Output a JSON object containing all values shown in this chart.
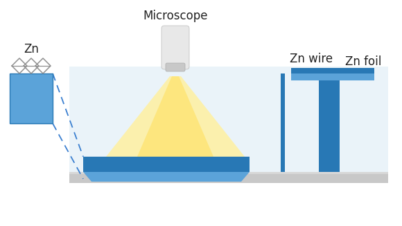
{
  "bg_color": "#ffffff",
  "title_text": "Microscope",
  "zn_label": "Zn",
  "zn_wire_label": "Zn wire",
  "zn_foil_label": "Zn foil",
  "blue_dark": "#2878B5",
  "blue_medium": "#5BA3D9",
  "blue_light": "#C8E0F0",
  "gray_floor": "#C8C8C8",
  "gray_base": "#B8B8B8",
  "gold_light": "#FFF0A0",
  "gold_mid": "#FFE060",
  "microscope_body_top": "#E8E8E8",
  "microscope_body_bot": "#C8C8C8",
  "dashed_color": "#3A7FD0",
  "zn_box_fill": "#5BA3D9",
  "zn_box_edge": "#2878B5",
  "mesh_color": "#909090"
}
